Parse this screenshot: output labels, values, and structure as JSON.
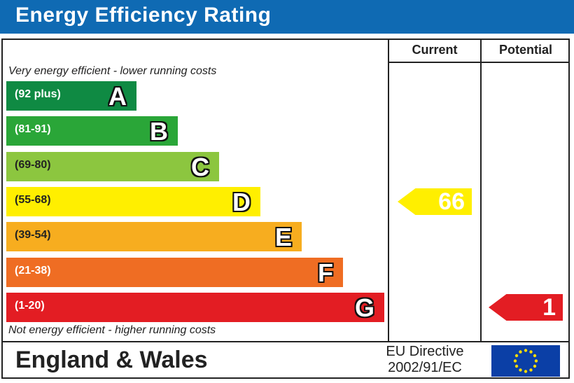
{
  "title": "Energy Efficiency Rating",
  "columns": {
    "current": "Current",
    "potential": "Potential"
  },
  "notes": {
    "top": "Very energy efficient - lower running costs",
    "bottom": "Not energy efficient - higher running costs"
  },
  "footer": {
    "region": "England & Wales",
    "directive_line1": "EU Directive",
    "directive_line2": "2002/91/EC",
    "flag_icon": "eu-flag-icon"
  },
  "colors": {
    "title_bar": "#0f6ab3",
    "flag_blue": "#0b3fa6",
    "flag_stars": "#ffdd00"
  },
  "chart_data": {
    "type": "bar",
    "categories": [
      "A",
      "B",
      "C",
      "D",
      "E",
      "F",
      "G"
    ],
    "bands": [
      {
        "letter": "A",
        "range": "(92 plus)",
        "min": 92,
        "max": null,
        "color": "#0f8a43"
      },
      {
        "letter": "B",
        "range": "(81-91)",
        "min": 81,
        "max": 91,
        "color": "#2aa638"
      },
      {
        "letter": "C",
        "range": "(69-80)",
        "min": 69,
        "max": 80,
        "color": "#8cc63f"
      },
      {
        "letter": "D",
        "range": "(55-68)",
        "min": 55,
        "max": 68,
        "color": "#ffef00"
      },
      {
        "letter": "E",
        "range": "(39-54)",
        "min": 39,
        "max": 54,
        "color": "#f7ad1f"
      },
      {
        "letter": "F",
        "range": "(21-38)",
        "min": 21,
        "max": 38,
        "color": "#ef6d23"
      },
      {
        "letter": "G",
        "range": "(1-20)",
        "min": 1,
        "max": 20,
        "color": "#e31d23"
      }
    ],
    "current": {
      "value": 66,
      "band": "D",
      "color": "#ffef00"
    },
    "potential": {
      "value": 1,
      "band": "G",
      "color": "#e31d23"
    }
  }
}
